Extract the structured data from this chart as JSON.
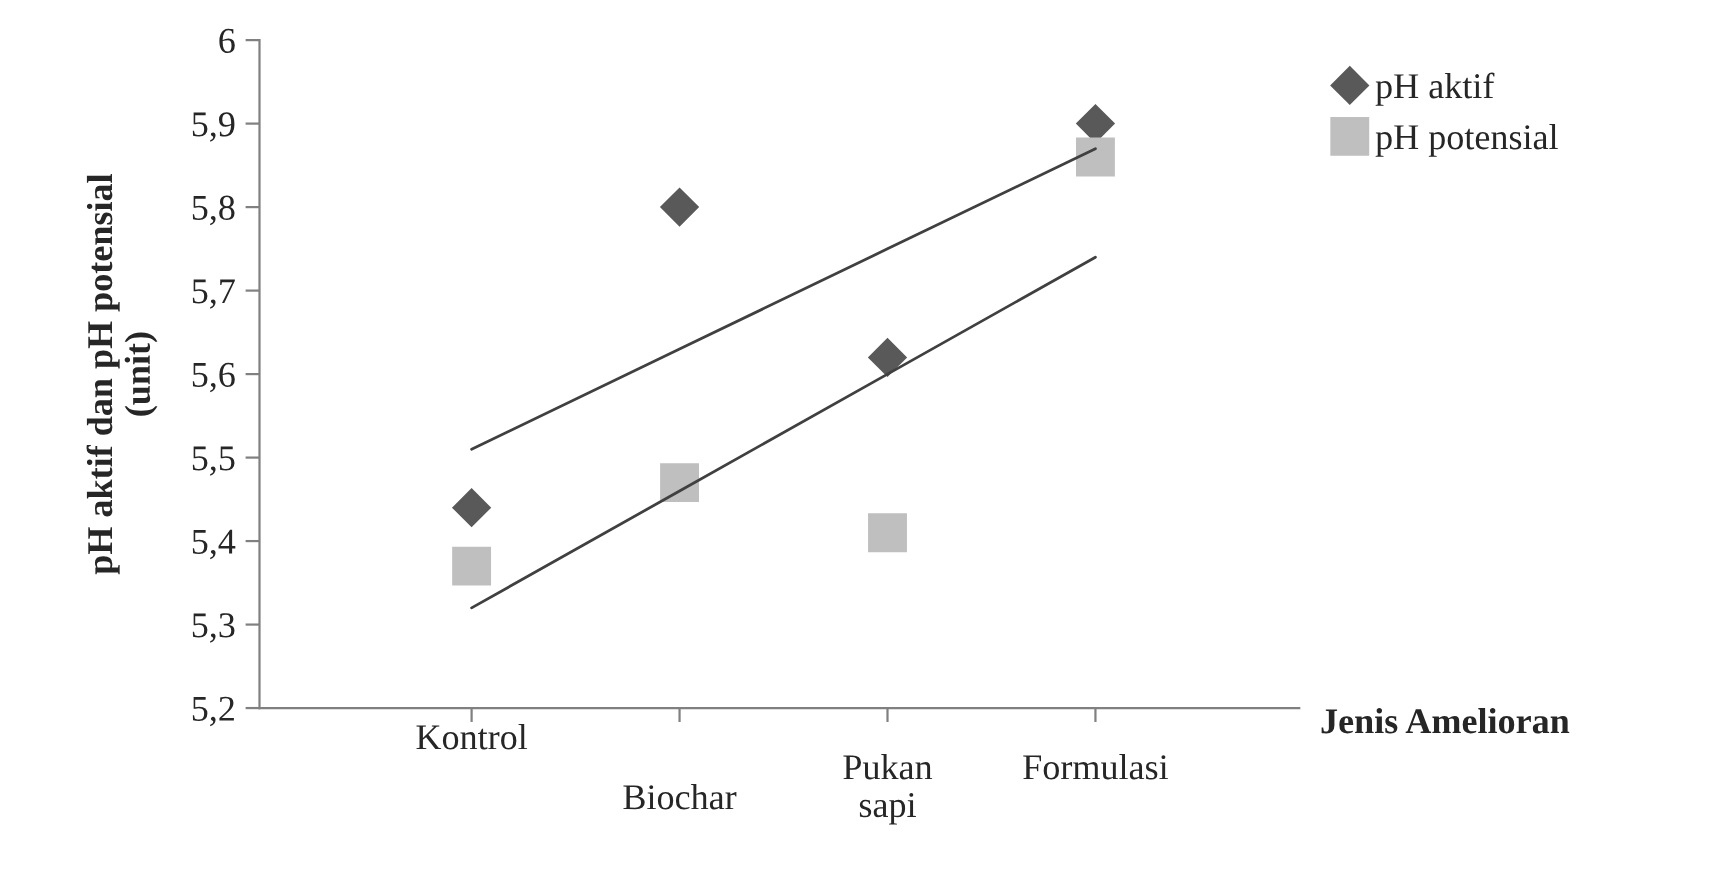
{
  "chart_data": {
    "type": "scatter",
    "xlabel": "Jenis Amelioran",
    "ylabel": "pH aktif dan pH potensial\n(unit)",
    "categories": [
      "Kontrol",
      "Biochar",
      "Pukan sapi",
      "Formulasi"
    ],
    "series": [
      {
        "name": "pH aktif",
        "color": "#595959",
        "marker": "diamond",
        "values": [
          5.44,
          5.8,
          5.62,
          5.9
        ]
      },
      {
        "name": "pH potensial",
        "color": "#bfbfbf",
        "marker": "square",
        "values": [
          5.37,
          5.47,
          5.41,
          5.86
        ]
      },
      {
        "type": "line",
        "color": "#404040",
        "values": [
          5.51,
          5.63,
          5.75,
          5.87
        ]
      },
      {
        "type": "line",
        "color": "#404040",
        "values": [
          5.32,
          5.46,
          5.6,
          5.74
        ]
      }
    ],
    "ylim": [
      5.2,
      6
    ],
    "yticks": [
      {
        "value": 5.2,
        "label": "5,2"
      },
      {
        "value": 5.3,
        "label": "5,3"
      },
      {
        "value": 5.4,
        "label": "5,4"
      },
      {
        "value": 5.5,
        "label": "5,5"
      },
      {
        "value": 5.6,
        "label": "5,6"
      },
      {
        "value": 5.7,
        "label": "5,7"
      },
      {
        "value": 5.8,
        "label": "5,8"
      },
      {
        "value": 5.9,
        "label": "5,9"
      },
      {
        "value": 6,
        "label": "6"
      }
    ],
    "legend": "top right",
    "grid": false
  }
}
